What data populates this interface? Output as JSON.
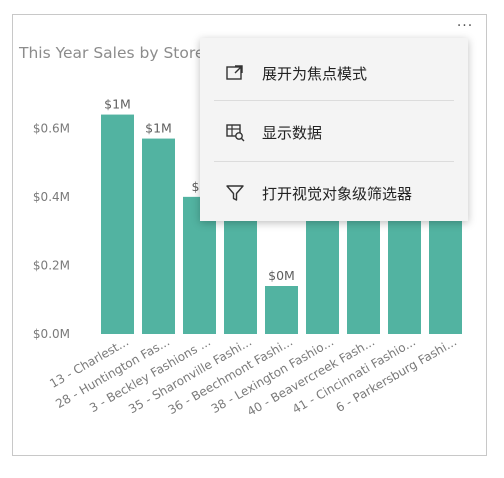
{
  "visual": {
    "title": "This Year Sales by Store",
    "more_options_icon": "ellipsis-icon",
    "more_options_glyph": "···"
  },
  "menu": {
    "items": [
      {
        "label": "展开为焦点模式",
        "icon": "focus-mode-icon"
      },
      {
        "label": "显示数据",
        "icon": "show-data-icon"
      },
      {
        "label": "打开视觉对象级筛选器",
        "icon": "filter-icon"
      }
    ]
  },
  "colors": {
    "bar": "#52b3a1",
    "menu_bg": "#f4f4f4"
  },
  "chart_data": {
    "type": "bar",
    "title": "This Year Sales by Store",
    "xlabel": "",
    "ylabel": "",
    "ylim": [
      0,
      0.7
    ],
    "y_ticks": [
      0,
      0.2,
      0.4,
      0.6
    ],
    "y_tick_labels": [
      "$0.0M",
      "$0.2M",
      "$0.4M",
      "$0.6M"
    ],
    "grid": false,
    "categories": [
      "13 - Charlest...",
      "28 - Huntington Fas...",
      "3 - Beckley Fashions ...",
      "35 - Sharonville Fashi...",
      "36 - Beechmont Fashi...",
      "38 - Lexington Fashio...",
      "40 - Beavercreek Fash...",
      "41 - Cincinnati Fashio...",
      "6 - Parkersburg Fashi..."
    ],
    "values": [
      0.64,
      0.57,
      0.4,
      0.42,
      0.14,
      0.42,
      0.42,
      0.42,
      0.42
    ],
    "data_labels": [
      "$1M",
      "$1M",
      "$0",
      "",
      "$0M",
      "",
      "",
      "",
      ""
    ]
  }
}
